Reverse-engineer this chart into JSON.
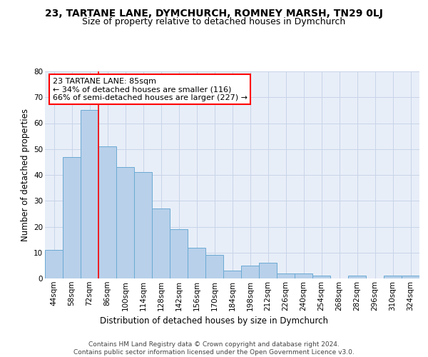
{
  "title_line1": "23, TARTANE LANE, DYMCHURCH, ROMNEY MARSH, TN29 0LJ",
  "title_line2": "Size of property relative to detached houses in Dymchurch",
  "xlabel": "Distribution of detached houses by size in Dymchurch",
  "ylabel": "Number of detached properties",
  "categories": [
    "44sqm",
    "58sqm",
    "72sqm",
    "86sqm",
    "100sqm",
    "114sqm",
    "128sqm",
    "142sqm",
    "156sqm",
    "170sqm",
    "184sqm",
    "198sqm",
    "212sqm",
    "226sqm",
    "240sqm",
    "254sqm",
    "268sqm",
    "282sqm",
    "296sqm",
    "310sqm",
    "324sqm"
  ],
  "values": [
    11,
    47,
    65,
    51,
    43,
    41,
    27,
    19,
    12,
    9,
    3,
    5,
    6,
    2,
    2,
    1,
    0,
    1,
    0,
    1,
    1
  ],
  "bar_color": "#b8d0ea",
  "bar_edge_color": "#6aaad4",
  "grid_color": "#c8d4e8",
  "background_color": "#e8eef8",
  "red_line_index": 2,
  "annotation_text": "23 TARTANE LANE: 85sqm\n← 34% of detached houses are smaller (116)\n66% of semi-detached houses are larger (227) →",
  "annotation_box_color": "white",
  "annotation_box_edge": "red",
  "ylim": [
    0,
    80
  ],
  "yticks": [
    0,
    10,
    20,
    30,
    40,
    50,
    60,
    70,
    80
  ],
  "footer_text": "Contains HM Land Registry data © Crown copyright and database right 2024.\nContains public sector information licensed under the Open Government Licence v3.0.",
  "title_fontsize": 10,
  "subtitle_fontsize": 9,
  "axis_label_fontsize": 8.5,
  "tick_fontsize": 7.5,
  "annotation_fontsize": 8,
  "footer_fontsize": 6.5
}
